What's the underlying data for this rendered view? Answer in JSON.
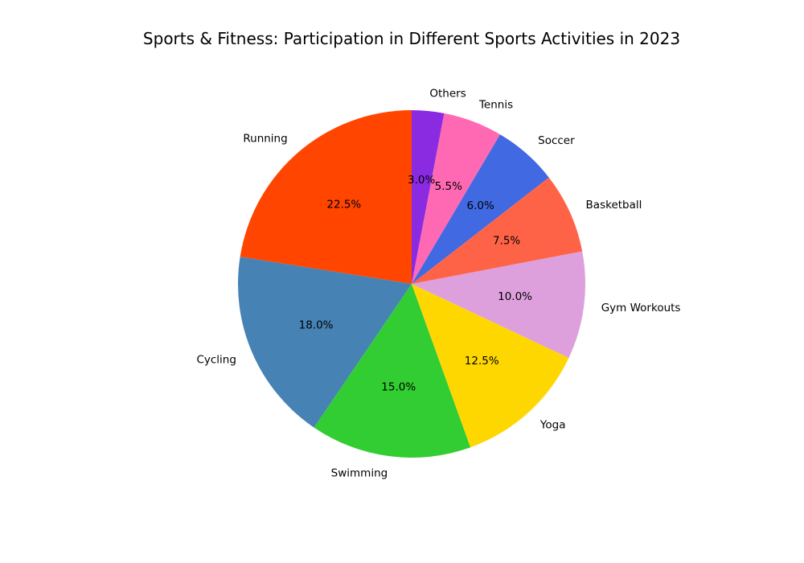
{
  "chart_data": {
    "type": "pie",
    "title": "Sports & Fitness: Participation in Different Sports Activities in 2023",
    "value_format": "percent_one_decimal",
    "start_angle_deg": 90,
    "direction": "counterclockwise",
    "slices": [
      {
        "label": "Running",
        "value": 22.5,
        "color": "#FF4500"
      },
      {
        "label": "Cycling",
        "value": 18.0,
        "color": "#4682B4"
      },
      {
        "label": "Swimming",
        "value": 15.0,
        "color": "#32CD32"
      },
      {
        "label": "Yoga",
        "value": 12.5,
        "color": "#FFD700"
      },
      {
        "label": "Gym Workouts",
        "value": 10.0,
        "color": "#DDA0DD"
      },
      {
        "label": "Basketball",
        "value": 7.5,
        "color": "#FF6347"
      },
      {
        "label": "Soccer",
        "value": 6.0,
        "color": "#4169E1"
      },
      {
        "label": "Tennis",
        "value": 5.5,
        "color": "#FF69B4"
      },
      {
        "label": "Others",
        "value": 3.0,
        "color": "#8A2BE2"
      }
    ]
  }
}
